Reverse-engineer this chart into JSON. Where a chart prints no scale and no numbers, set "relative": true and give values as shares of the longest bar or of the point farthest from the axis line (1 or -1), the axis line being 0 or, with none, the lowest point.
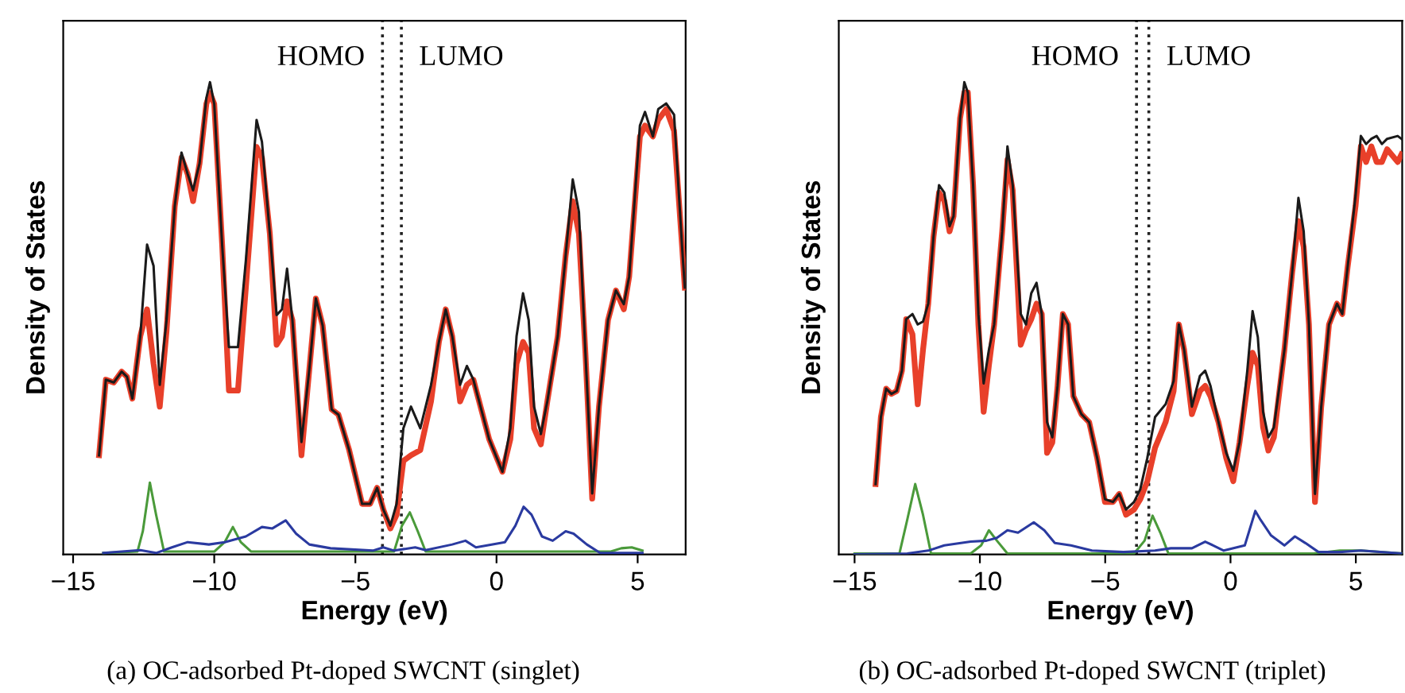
{
  "chart_data": [
    {
      "type": "line",
      "relative": true,
      "xlabel": "Energy (eV)",
      "ylabel": "Density of States",
      "xlim": [
        -15.35,
        6.7
      ],
      "xticks": [
        {
          "value": -15,
          "label": "−15"
        },
        {
          "value": -10,
          "label": "−10"
        },
        {
          "value": -5,
          "label": "−5"
        },
        0,
        5
      ],
      "tick_labels": "x",
      "grid": false,
      "marker": "none",
      "line_style": "solid",
      "ref_lines": [
        {
          "axis": "x",
          "value": -4.04,
          "color": "#222222",
          "line_style": "dotted"
        },
        {
          "axis": "x",
          "value": -3.37,
          "color": "#222222",
          "line_style": "dotted"
        }
      ],
      "annotations": [
        "HOMO",
        "LUMO",
        "(a) OC-adsorbed Pt-doped SWCNT (singlet)"
      ],
      "series": [
        {
          "color": "#e8402a",
          "x": [
            -14.08,
            -13.84,
            -13.56,
            -13.28,
            -13.09,
            -12.9,
            -12.62,
            -12.38,
            -12.15,
            -11.93,
            -11.69,
            -11.4,
            -11.16,
            -10.94,
            -10.75,
            -10.52,
            -10.28,
            -10.15,
            -10.0,
            -9.72,
            -9.48,
            -9.16,
            -8.88,
            -8.5,
            -8.31,
            -8.03,
            -7.79,
            -7.6,
            -7.42,
            -7.23,
            -6.91,
            -6.63,
            -6.4,
            -6.16,
            -5.84,
            -5.6,
            -5.22,
            -4.76,
            -4.48,
            -4.23,
            -4.01,
            -3.76,
            -3.54,
            -3.3,
            -3.03,
            -2.7,
            -2.32,
            -2.04,
            -1.8,
            -1.57,
            -1.29,
            -1.05,
            -0.82,
            -0.26,
            0.21,
            0.49,
            0.71,
            0.94,
            1.14,
            1.33,
            1.57,
            1.8,
            2.17,
            2.45,
            2.7,
            2.92,
            3.15,
            3.39,
            3.63,
            3.95,
            4.23,
            4.51,
            4.7,
            5.08,
            5.26,
            5.54,
            5.73,
            6.01,
            6.29,
            6.57,
            6.67
          ],
          "values": [
            0.21,
            0.37,
            0.364,
            0.387,
            0.376,
            0.33,
            0.462,
            0.519,
            0.404,
            0.313,
            0.473,
            0.737,
            0.84,
            0.805,
            0.748,
            0.828,
            0.954,
            0.977,
            0.954,
            0.656,
            0.347,
            0.347,
            0.565,
            0.863,
            0.84,
            0.679,
            0.444,
            0.462,
            0.536,
            0.496,
            0.21,
            0.393,
            0.542,
            0.485,
            0.307,
            0.296,
            0.221,
            0.107,
            0.107,
            0.141,
            0.095,
            0.055,
            0.084,
            0.198,
            0.21,
            0.221,
            0.324,
            0.45,
            0.519,
            0.462,
            0.324,
            0.359,
            0.37,
            0.244,
            0.175,
            0.244,
            0.404,
            0.45,
            0.427,
            0.267,
            0.233,
            0.324,
            0.462,
            0.633,
            0.748,
            0.679,
            0.427,
            0.118,
            0.313,
            0.496,
            0.559,
            0.519,
            0.588,
            0.885,
            0.908,
            0.885,
            0.92,
            0.943,
            0.897,
            0.656,
            0.565
          ]
        },
        {
          "color": "#1a1a1a",
          "x": [
            -14.08,
            -13.84,
            -13.56,
            -13.28,
            -13.09,
            -12.9,
            -12.62,
            -12.38,
            -12.15,
            -11.93,
            -11.69,
            -11.4,
            -11.16,
            -10.94,
            -10.75,
            -10.52,
            -10.28,
            -10.15,
            -10.0,
            -9.72,
            -9.48,
            -9.16,
            -8.88,
            -8.5,
            -8.31,
            -8.03,
            -7.79,
            -7.6,
            -7.42,
            -7.23,
            -6.91,
            -6.63,
            -6.4,
            -6.16,
            -5.84,
            -5.6,
            -5.22,
            -4.76,
            -4.48,
            -4.23,
            -4.01,
            -3.76,
            -3.54,
            -3.3,
            -3.03,
            -2.7,
            -2.32,
            -2.04,
            -1.8,
            -1.57,
            -1.29,
            -1.05,
            -0.82,
            -0.26,
            0.21,
            0.49,
            0.71,
            0.94,
            1.14,
            1.33,
            1.57,
            1.8,
            2.17,
            2.45,
            2.7,
            2.92,
            3.15,
            3.39,
            3.63,
            3.95,
            4.23,
            4.51,
            4.7,
            5.08,
            5.26,
            5.54,
            5.73,
            6.01,
            6.29,
            6.57,
            6.67
          ],
          "values": [
            0.21,
            0.37,
            0.364,
            0.387,
            0.376,
            0.33,
            0.462,
            0.656,
            0.611,
            0.359,
            0.496,
            0.737,
            0.851,
            0.805,
            0.771,
            0.828,
            0.966,
            1,
            0.954,
            0.656,
            0.439,
            0.439,
            0.622,
            0.92,
            0.874,
            0.679,
            0.507,
            0.519,
            0.605,
            0.496,
            0.238,
            0.393,
            0.542,
            0.485,
            0.307,
            0.296,
            0.221,
            0.107,
            0.107,
            0.141,
            0.095,
            0.061,
            0.107,
            0.267,
            0.313,
            0.267,
            0.359,
            0.45,
            0.519,
            0.462,
            0.359,
            0.399,
            0.37,
            0.244,
            0.175,
            0.267,
            0.462,
            0.553,
            0.496,
            0.313,
            0.255,
            0.324,
            0.462,
            0.633,
            0.794,
            0.725,
            0.427,
            0.129,
            0.313,
            0.496,
            0.559,
            0.53,
            0.588,
            0.908,
            0.937,
            0.885,
            0.943,
            0.955,
            0.931,
            0.656,
            0.565
          ]
        },
        {
          "color": "#4a9a3a",
          "x": [
            -13.93,
            -12.72,
            -12.53,
            -12.28,
            -12.06,
            -11.78,
            -10.0,
            -9.63,
            -9.34,
            -9.06,
            -8.69,
            -3.63,
            -3.35,
            -3.07,
            -2.79,
            -2.51,
            4.05,
            4.42,
            4.79,
            5.17
          ],
          "values": [
            0.003,
            0.006,
            0.049,
            0.152,
            0.084,
            0.006,
            0.006,
            0.026,
            0.058,
            0.026,
            0.006,
            0.006,
            0.061,
            0.089,
            0.049,
            0.006,
            0.006,
            0.013,
            0.015,
            0.008
          ]
        },
        {
          "color": "#2a3aa0",
          "x": [
            -13.93,
            -12.62,
            -12.06,
            -11.5,
            -10.94,
            -10.19,
            -9.63,
            -8.88,
            -8.31,
            -7.94,
            -7.47,
            -7.1,
            -6.63,
            -5.88,
            -4.38,
            -4.01,
            -3.63,
            -2.88,
            -2.51,
            -1.57,
            -1.1,
            -0.73,
            0.3,
            0.67,
            0.96,
            1.24,
            1.61,
            1.99,
            2.45,
            2.73,
            3.2,
            3.67,
            5.17
          ],
          "values": [
            0.003,
            0.009,
            0.003,
            0.015,
            0.026,
            0.021,
            0.026,
            0.038,
            0.058,
            0.055,
            0.072,
            0.044,
            0.021,
            0.013,
            0.008,
            0.015,
            0.008,
            0.015,
            0.009,
            0.021,
            0.029,
            0.015,
            0.026,
            0.061,
            0.101,
            0.084,
            0.038,
            0.029,
            0.049,
            0.044,
            0.021,
            0.003,
            0.003
          ]
        }
      ]
    },
    {
      "type": "line",
      "relative": true,
      "xlabel": "Energy (eV)",
      "ylabel": "Density of States",
      "xlim": [
        -15.63,
        6.85
      ],
      "xticks": [
        {
          "value": -15,
          "label": "−15"
        },
        {
          "value": -10,
          "label": "−10"
        },
        {
          "value": -5,
          "label": "−5"
        },
        0,
        5
      ],
      "tick_labels": "x",
      "grid": false,
      "marker": "none",
      "line_style": "solid",
      "ref_lines": [
        {
          "axis": "x",
          "value": -3.75,
          "color": "#222222",
          "line_style": "dotted"
        },
        {
          "axis": "x",
          "value": -3.26,
          "color": "#222222",
          "line_style": "dotted"
        }
      ],
      "annotations": [
        "HOMO",
        "LUMO",
        "(b) OC-adsorbed Pt-doped SWCNT (triplet)"
      ],
      "series": [
        {
          "color": "#e8402a",
          "x": [
            -14.16,
            -13.95,
            -13.74,
            -13.53,
            -13.32,
            -13.11,
            -12.94,
            -12.69,
            -12.48,
            -12.27,
            -12.06,
            -11.85,
            -11.63,
            -11.42,
            -11.21,
            -11.05,
            -10.79,
            -10.62,
            -10.48,
            -10.27,
            -10.06,
            -9.85,
            -9.64,
            -9.43,
            -9.11,
            -8.9,
            -8.69,
            -8.37,
            -8.16,
            -7.95,
            -7.74,
            -7.53,
            -7.32,
            -7.11,
            -6.9,
            -6.69,
            -6.48,
            -6.27,
            -5.95,
            -5.64,
            -5.32,
            -5.01,
            -4.69,
            -4.44,
            -4.17,
            -3.85,
            -3.6,
            -3.32,
            -3.01,
            -2.59,
            -2.27,
            -2.06,
            -1.85,
            -1.54,
            -1.22,
            -1.01,
            -0.8,
            -0.48,
            -0.17,
            0.11,
            0.36,
            0.67,
            0.88,
            1.09,
            1.3,
            1.51,
            1.73,
            2.15,
            2.46,
            2.71,
            2.92,
            3.13,
            3.37,
            3.62,
            3.93,
            4.25,
            4.46,
            4.67,
            4.99,
            5.2,
            5.41,
            5.62,
            5.83,
            6.04,
            6.25,
            6.67,
            6.82
          ],
          "values": [
            0.149,
            0.291,
            0.351,
            0.34,
            0.346,
            0.389,
            0.498,
            0.466,
            0.318,
            0.433,
            0.531,
            0.673,
            0.766,
            0.749,
            0.684,
            0.716,
            0.924,
            0.978,
            0.978,
            0.782,
            0.487,
            0.302,
            0.4,
            0.487,
            0.684,
            0.836,
            0.771,
            0.444,
            0.475,
            0.498,
            0.531,
            0.509,
            0.215,
            0.237,
            0.357,
            0.509,
            0.487,
            0.335,
            0.297,
            0.28,
            0.204,
            0.111,
            0.111,
            0.128,
            0.084,
            0.095,
            0.117,
            0.155,
            0.226,
            0.28,
            0.346,
            0.487,
            0.433,
            0.297,
            0.346,
            0.357,
            0.335,
            0.28,
            0.204,
            0.155,
            0.237,
            0.357,
            0.427,
            0.4,
            0.269,
            0.22,
            0.248,
            0.433,
            0.597,
            0.706,
            0.651,
            0.487,
            0.111,
            0.313,
            0.487,
            0.531,
            0.509,
            0.607,
            0.738,
            0.864,
            0.831,
            0.864,
            0.831,
            0.831,
            0.858,
            0.831,
            0.847
          ]
        },
        {
          "color": "#1a1a1a",
          "x": [
            -14.16,
            -13.95,
            -13.74,
            -13.53,
            -13.32,
            -13.11,
            -12.94,
            -12.69,
            -12.48,
            -12.27,
            -12.06,
            -11.85,
            -11.63,
            -11.42,
            -11.21,
            -11.05,
            -10.79,
            -10.62,
            -10.48,
            -10.27,
            -10.06,
            -9.85,
            -9.64,
            -9.43,
            -9.11,
            -8.9,
            -8.69,
            -8.37,
            -8.16,
            -7.95,
            -7.74,
            -7.53,
            -7.32,
            -7.11,
            -6.9,
            -6.69,
            -6.48,
            -6.27,
            -5.95,
            -5.64,
            -5.32,
            -5.01,
            -4.69,
            -4.44,
            -4.17,
            -3.85,
            -3.6,
            -3.32,
            -3.01,
            -2.59,
            -2.27,
            -2.06,
            -1.85,
            -1.54,
            -1.22,
            -1.01,
            -0.8,
            -0.48,
            -0.17,
            0.11,
            0.36,
            0.67,
            0.88,
            1.09,
            1.3,
            1.51,
            1.73,
            2.15,
            2.46,
            2.71,
            2.92,
            3.13,
            3.37,
            3.62,
            3.93,
            4.25,
            4.46,
            4.67,
            4.99,
            5.2,
            5.41,
            5.62,
            5.83,
            6.04,
            6.25,
            6.67,
            6.82
          ],
          "values": [
            0.149,
            0.291,
            0.351,
            0.34,
            0.346,
            0.389,
            0.498,
            0.509,
            0.487,
            0.493,
            0.531,
            0.673,
            0.782,
            0.766,
            0.695,
            0.716,
            0.924,
            1,
            0.978,
            0.782,
            0.509,
            0.362,
            0.433,
            0.487,
            0.684,
            0.864,
            0.782,
            0.509,
            0.487,
            0.553,
            0.575,
            0.509,
            0.28,
            0.248,
            0.357,
            0.509,
            0.487,
            0.335,
            0.297,
            0.28,
            0.204,
            0.117,
            0.111,
            0.128,
            0.095,
            0.111,
            0.138,
            0.204,
            0.291,
            0.318,
            0.367,
            0.487,
            0.433,
            0.313,
            0.378,
            0.389,
            0.357,
            0.28,
            0.215,
            0.177,
            0.237,
            0.389,
            0.515,
            0.46,
            0.302,
            0.248,
            0.269,
            0.433,
            0.597,
            0.755,
            0.684,
            0.487,
            0.128,
            0.313,
            0.487,
            0.531,
            0.509,
            0.607,
            0.76,
            0.886,
            0.869,
            0.88,
            0.886,
            0.869,
            0.88,
            0.886,
            0.88
          ]
        },
        {
          "color": "#4a9a3a",
          "x": [
            -15.0,
            -13.21,
            -12.9,
            -12.58,
            -12.27,
            -11.95,
            -10.37,
            -9.95,
            -9.64,
            -9.32,
            -8.9,
            -3.85,
            -3.43,
            -3.11,
            -2.8,
            -2.48,
            3.3,
            4.36,
            5.2,
            6.82
          ],
          "values": [
            0.002,
            0.002,
            0.073,
            0.149,
            0.084,
            0.002,
            0.002,
            0.019,
            0.051,
            0.029,
            0.002,
            0.002,
            0.029,
            0.082,
            0.046,
            0.002,
            0.002,
            0.008,
            0.008,
            0.002
          ]
        },
        {
          "color": "#2a3aa0",
          "x": [
            -15.0,
            -12.9,
            -12.06,
            -11.42,
            -10.37,
            -9.74,
            -9.32,
            -8.9,
            -8.48,
            -7.85,
            -7.43,
            -7.01,
            -6.37,
            -5.53,
            -4.27,
            -3.01,
            -2.38,
            -1.54,
            -1.01,
            -0.69,
            -0.27,
            0.57,
            0.99,
            1.2,
            1.62,
            2.15,
            2.57,
            2.99,
            3.51,
            4.36,
            5.2,
            6.82
          ],
          "values": [
            0,
            0.002,
            0.008,
            0.019,
            0.027,
            0.029,
            0.035,
            0.051,
            0.046,
            0.068,
            0.051,
            0.024,
            0.019,
            0.008,
            0.005,
            0.008,
            0.013,
            0.013,
            0.027,
            0.019,
            0.008,
            0.019,
            0.092,
            0.073,
            0.04,
            0.019,
            0.038,
            0.024,
            0.005,
            0.005,
            0.008,
            0.002
          ]
        }
      ]
    }
  ]
}
